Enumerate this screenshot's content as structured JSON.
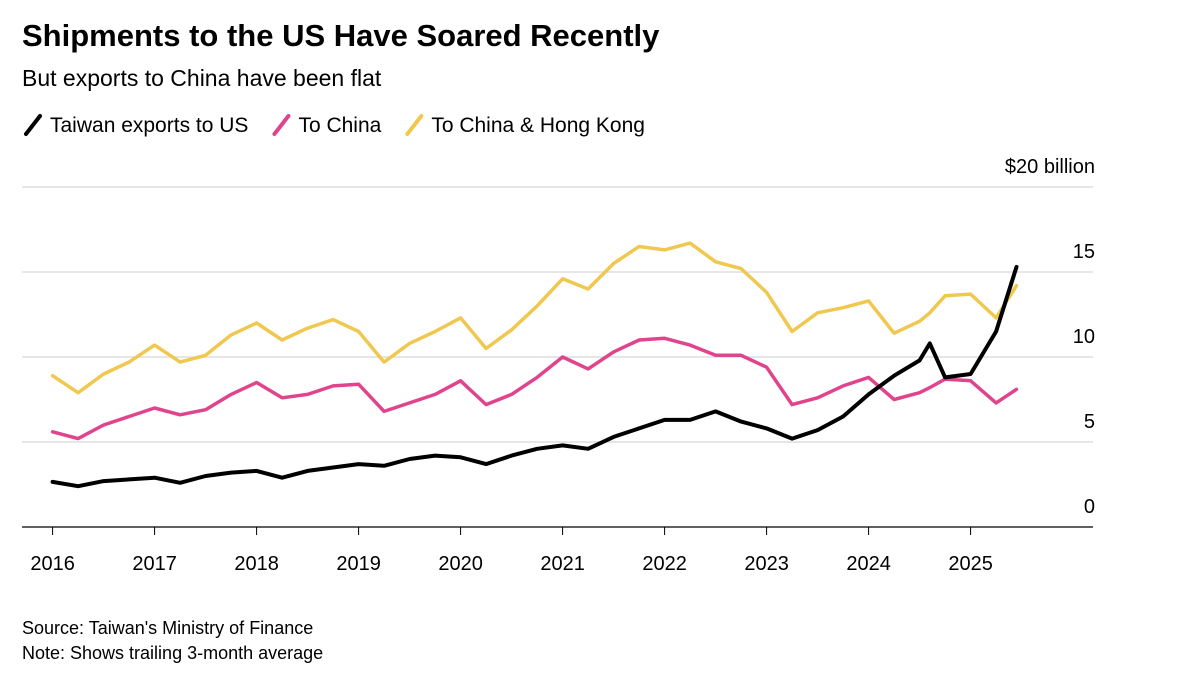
{
  "chart_data": {
    "type": "line",
    "title": "Shipments to the US Have Soared Recently",
    "subtitle": "But exports to China have been flat",
    "source": "Source: Taiwan's Ministry of Finance",
    "note": "Note: Shows trailing 3-month average",
    "x": [
      2016,
      2016.25,
      2016.5,
      2016.75,
      2017,
      2017.25,
      2017.5,
      2017.75,
      2018,
      2018.25,
      2018.5,
      2018.75,
      2019,
      2019.25,
      2019.5,
      2019.75,
      2020,
      2020.25,
      2020.5,
      2020.75,
      2021,
      2021.25,
      2021.5,
      2021.75,
      2022,
      2022.25,
      2022.5,
      2022.75,
      2023,
      2023.25,
      2023.5,
      2023.75,
      2024,
      2024.25,
      2024.5,
      2024.6,
      2024.75,
      2025,
      2025.25,
      2025.45
    ],
    "series": [
      {
        "name": "To China & Hong Kong",
        "color": "#f0c850",
        "values": [
          8.9,
          7.9,
          9.0,
          9.7,
          10.7,
          9.7,
          10.1,
          11.3,
          12.0,
          11.0,
          11.7,
          12.2,
          11.5,
          9.7,
          10.8,
          11.5,
          12.3,
          10.5,
          11.6,
          13.0,
          14.6,
          14.0,
          15.5,
          16.5,
          16.3,
          16.7,
          15.6,
          15.2,
          13.8,
          11.5,
          12.6,
          12.9,
          13.3,
          11.4,
          12.1,
          12.6,
          13.6,
          13.7,
          12.3,
          14.2
        ]
      },
      {
        "name": "To China",
        "color": "#e0448c",
        "values": [
          5.6,
          5.2,
          6.0,
          6.5,
          7.0,
          6.6,
          6.9,
          7.8,
          8.5,
          7.6,
          7.8,
          8.3,
          8.4,
          6.8,
          7.3,
          7.8,
          8.6,
          7.2,
          7.8,
          8.8,
          10.0,
          9.3,
          10.3,
          11.0,
          11.1,
          10.7,
          10.1,
          10.1,
          9.4,
          7.2,
          7.6,
          8.3,
          8.8,
          7.5,
          7.9,
          8.2,
          8.7,
          8.6,
          7.3,
          8.1
        ]
      },
      {
        "name": "Taiwan exports to US",
        "color": "#000000",
        "values": [
          2.65,
          2.4,
          2.7,
          2.8,
          2.9,
          2.6,
          3.0,
          3.2,
          3.3,
          2.9,
          3.3,
          3.5,
          3.7,
          3.6,
          4.0,
          4.2,
          4.1,
          3.7,
          4.2,
          4.6,
          4.8,
          4.6,
          5.3,
          5.8,
          6.3,
          6.3,
          6.8,
          6.2,
          5.8,
          5.2,
          5.7,
          6.5,
          7.8,
          8.9,
          9.8,
          10.8,
          8.8,
          9.0,
          11.5,
          15.3
        ]
      }
    ],
    "legend_order": [
      2,
      1,
      0
    ],
    "xlim": [
      2015.7,
      2026.2
    ],
    "xticks": [
      2016,
      2017,
      2018,
      2019,
      2020,
      2021,
      2022,
      2023,
      2024,
      2025
    ],
    "ylim": [
      0,
      20
    ],
    "yticks": [
      0,
      5,
      10,
      15,
      {
        "value": 20,
        "label": "$20 billion"
      }
    ],
    "grid": true
  }
}
